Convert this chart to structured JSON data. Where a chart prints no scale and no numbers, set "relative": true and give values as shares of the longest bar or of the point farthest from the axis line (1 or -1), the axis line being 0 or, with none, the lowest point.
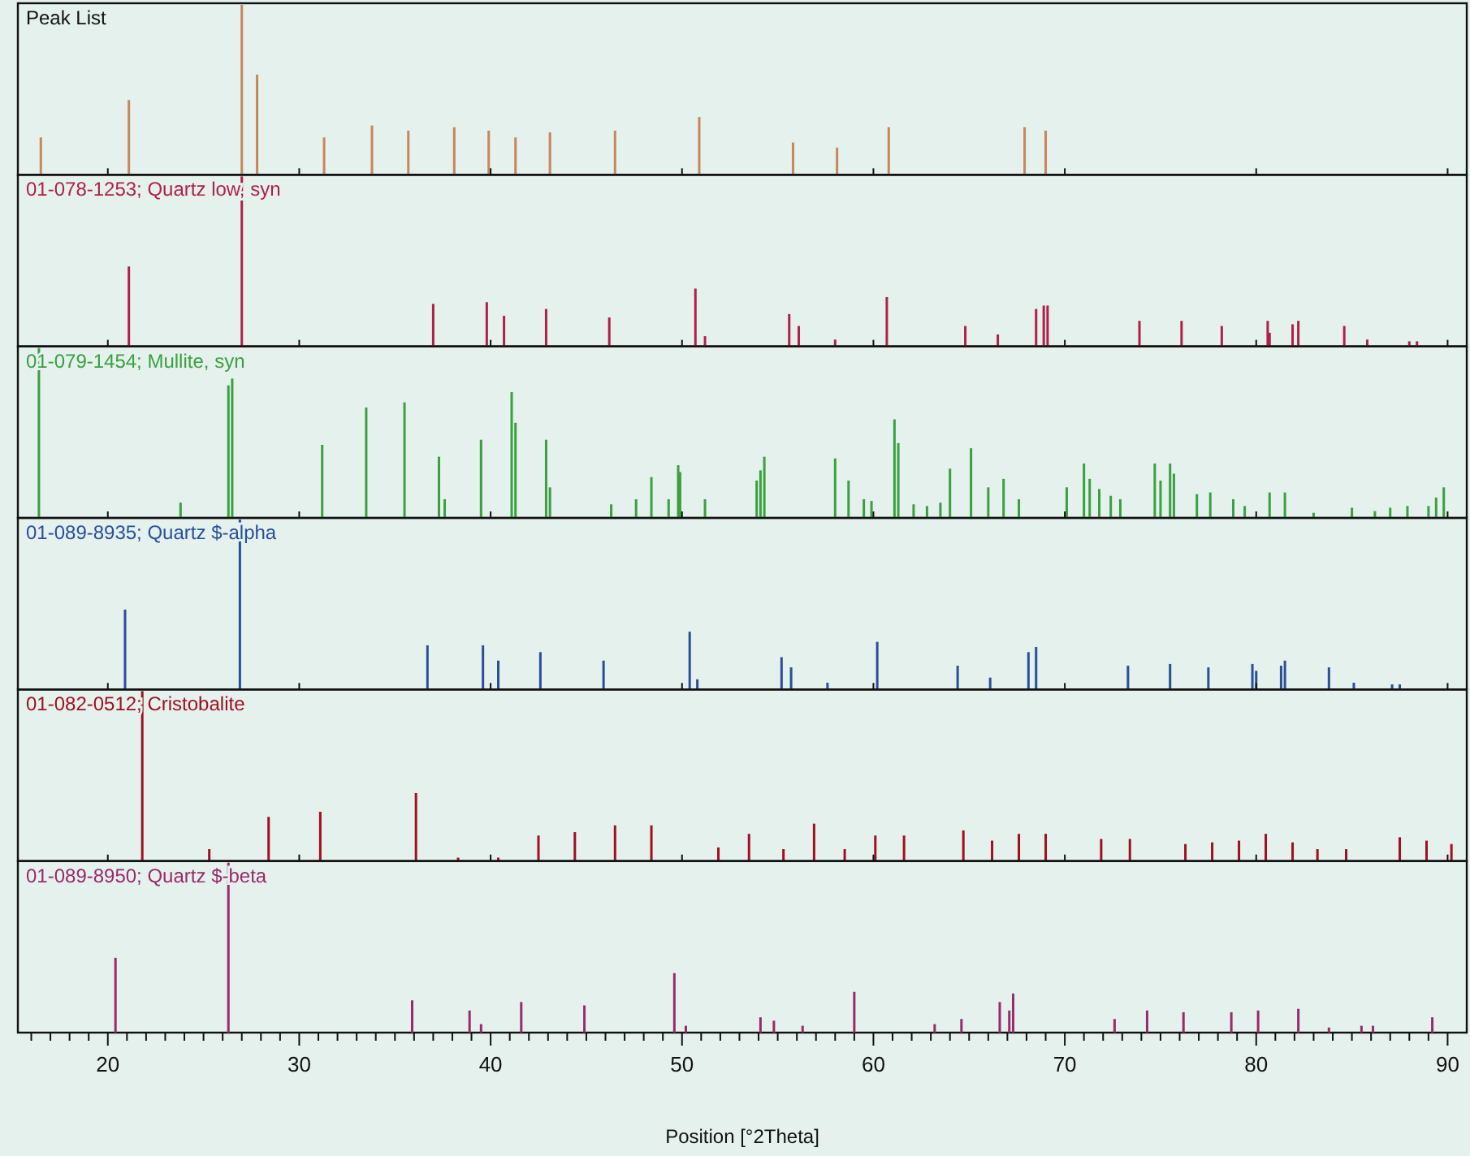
{
  "chart_data": [
    {
      "type": "bar",
      "title": "Peak List",
      "relative": true,
      "tick_labels": false,
      "xlim": [
        15.3,
        91
      ],
      "xticks": [
        20,
        30,
        40,
        50,
        60,
        70,
        80,
        90
      ],
      "color": "#c8865a",
      "x": [
        16.5,
        21.1,
        27.0,
        27.8,
        31.3,
        33.8,
        35.7,
        38.1,
        39.9,
        41.3,
        43.1,
        46.5,
        50.9,
        55.8,
        58.1,
        60.8,
        67.9,
        69.0
      ],
      "values": [
        0.22,
        0.44,
        1,
        0.59,
        0.22,
        0.29,
        0.26,
        0.28,
        0.26,
        0.22,
        0.25,
        0.26,
        0.34,
        0.19,
        0.16,
        0.28,
        0.28,
        0.26
      ]
    },
    {
      "type": "bar",
      "title": "01-078-1253; Quartz low, syn",
      "relative": true,
      "tick_labels": false,
      "xlim": [
        15.3,
        91
      ],
      "xticks": [
        20,
        30,
        40,
        50,
        60,
        70,
        80,
        90
      ],
      "color": "#b0204a",
      "x": [
        21.1,
        27.0,
        37.0,
        39.8,
        40.7,
        42.9,
        46.2,
        50.7,
        51.2,
        55.6,
        56.1,
        58.0,
        60.7,
        64.8,
        66.5,
        68.5,
        68.9,
        69.1,
        73.9,
        76.1,
        78.2,
        80.6,
        80.7,
        81.9,
        82.2,
        84.6,
        85.8,
        88.0,
        88.4
      ],
      "values": [
        0.47,
        1,
        0.25,
        0.26,
        0.18,
        0.22,
        0.17,
        0.34,
        0.06,
        0.19,
        0.12,
        0.04,
        0.29,
        0.12,
        0.07,
        0.22,
        0.24,
        0.24,
        0.15,
        0.15,
        0.12,
        0.15,
        0.08,
        0.13,
        0.15,
        0.12,
        0.04,
        0.03,
        0.03
      ]
    },
    {
      "type": "bar",
      "title": "01-079-1454; Mullite, syn",
      "relative": true,
      "tick_labels": false,
      "xlim": [
        15.3,
        91
      ],
      "xticks": [
        20,
        30,
        40,
        50,
        60,
        70,
        80,
        90
      ],
      "color": "#3aa040",
      "x": [
        16.4,
        23.8,
        26.3,
        26.5,
        31.2,
        33.5,
        35.5,
        37.3,
        37.6,
        39.5,
        41.1,
        41.3,
        42.9,
        43.1,
        46.3,
        47.6,
        48.4,
        49.3,
        49.8,
        49.9,
        51.2,
        53.9,
        54.1,
        54.3,
        58.0,
        58.7,
        59.5,
        59.9,
        61.1,
        61.3,
        62.1,
        62.8,
        63.5,
        64.0,
        65.1,
        66.0,
        66.8,
        67.6,
        70.1,
        71.0,
        71.3,
        71.8,
        72.4,
        72.9,
        74.7,
        75.0,
        75.5,
        75.7,
        76.9,
        77.6,
        78.8,
        79.4,
        80.7,
        81.5,
        83.0,
        85.0,
        86.2,
        87.0,
        87.9,
        89.0,
        89.4,
        89.8
      ],
      "values": [
        1,
        0.09,
        0.78,
        0.82,
        0.43,
        0.65,
        0.68,
        0.36,
        0.11,
        0.46,
        0.74,
        0.56,
        0.46,
        0.18,
        0.08,
        0.11,
        0.24,
        0.11,
        0.31,
        0.27,
        0.11,
        0.22,
        0.28,
        0.36,
        0.35,
        0.22,
        0.11,
        0.1,
        0.58,
        0.44,
        0.08,
        0.07,
        0.09,
        0.29,
        0.41,
        0.18,
        0.23,
        0.11,
        0.18,
        0.32,
        0.23,
        0.17,
        0.13,
        0.11,
        0.32,
        0.22,
        0.32,
        0.26,
        0.14,
        0.15,
        0.11,
        0.07,
        0.15,
        0.15,
        0.03,
        0.06,
        0.04,
        0.06,
        0.07,
        0.07,
        0.12,
        0.18
      ]
    },
    {
      "type": "bar",
      "title": "01-089-8935; Quartz $-alpha",
      "relative": true,
      "tick_labels": false,
      "xlim": [
        15.3,
        91
      ],
      "xticks": [
        20,
        30,
        40,
        50,
        60,
        70,
        80,
        90
      ],
      "color": "#2a4f9a",
      "x": [
        20.9,
        26.9,
        36.7,
        39.6,
        40.4,
        42.6,
        45.9,
        50.4,
        50.8,
        55.2,
        55.7,
        57.6,
        60.2,
        64.4,
        66.1,
        68.1,
        68.5,
        73.3,
        75.5,
        77.5,
        79.8,
        80.0,
        81.3,
        81.5,
        83.8,
        85.1,
        87.1,
        87.5
      ],
      "values": [
        0.47,
        1,
        0.26,
        0.26,
        0.17,
        0.22,
        0.17,
        0.34,
        0.06,
        0.19,
        0.13,
        0.04,
        0.28,
        0.14,
        0.07,
        0.22,
        0.25,
        0.14,
        0.15,
        0.13,
        0.15,
        0.11,
        0.14,
        0.17,
        0.13,
        0.04,
        0.03,
        0.03
      ]
    },
    {
      "type": "bar",
      "title": "01-082-0512; Cristobalite",
      "relative": true,
      "tick_labels": false,
      "xlim": [
        15.3,
        91
      ],
      "xticks": [
        20,
        30,
        40,
        50,
        60,
        70,
        80,
        90
      ],
      "color": "#a01020",
      "x": [
        21.8,
        25.3,
        28.4,
        31.1,
        36.1,
        38.3,
        40.4,
        42.5,
        44.4,
        46.5,
        48.4,
        51.9,
        53.5,
        55.3,
        56.9,
        58.5,
        60.1,
        61.6,
        64.7,
        66.2,
        67.6,
        69.0,
        71.9,
        73.4,
        76.3,
        77.7,
        79.1,
        80.5,
        81.9,
        83.2,
        84.7,
        87.5,
        88.9,
        90.2
      ],
      "values": [
        1,
        0.07,
        0.26,
        0.29,
        0.4,
        0.02,
        0.02,
        0.15,
        0.17,
        0.21,
        0.21,
        0.08,
        0.16,
        0.07,
        0.22,
        0.07,
        0.15,
        0.15,
        0.18,
        0.12,
        0.16,
        0.16,
        0.13,
        0.13,
        0.1,
        0.11,
        0.12,
        0.16,
        0.11,
        0.07,
        0.07,
        0.14,
        0.12,
        0.1
      ]
    },
    {
      "type": "bar",
      "title": "01-089-8950; Quartz $-beta",
      "relative": true,
      "xlabel": "Position [°2Theta]",
      "xlim": [
        15.3,
        91
      ],
      "color": "#9a2a6a",
      "xticks": [
        {
          "value": 16,
          "label": null
        },
        {
          "value": 17,
          "label": null
        },
        {
          "value": 18,
          "label": null
        },
        {
          "value": 19,
          "label": null
        },
        20,
        {
          "value": 21,
          "label": null
        },
        {
          "value": 22,
          "label": null
        },
        {
          "value": 23,
          "label": null
        },
        {
          "value": 24,
          "label": null
        },
        {
          "value": 25,
          "label": null
        },
        {
          "value": 26,
          "label": null
        },
        {
          "value": 27,
          "label": null
        },
        {
          "value": 28,
          "label": null
        },
        {
          "value": 29,
          "label": null
        },
        30,
        {
          "value": 31,
          "label": null
        },
        {
          "value": 32,
          "label": null
        },
        {
          "value": 33,
          "label": null
        },
        {
          "value": 34,
          "label": null
        },
        {
          "value": 35,
          "label": null
        },
        {
          "value": 36,
          "label": null
        },
        {
          "value": 37,
          "label": null
        },
        {
          "value": 38,
          "label": null
        },
        {
          "value": 39,
          "label": null
        },
        40,
        {
          "value": 41,
          "label": null
        },
        {
          "value": 42,
          "label": null
        },
        {
          "value": 43,
          "label": null
        },
        {
          "value": 44,
          "label": null
        },
        {
          "value": 45,
          "label": null
        },
        {
          "value": 46,
          "label": null
        },
        {
          "value": 47,
          "label": null
        },
        {
          "value": 48,
          "label": null
        },
        {
          "value": 49,
          "label": null
        },
        50,
        {
          "value": 51,
          "label": null
        },
        {
          "value": 52,
          "label": null
        },
        {
          "value": 53,
          "label": null
        },
        {
          "value": 54,
          "label": null
        },
        {
          "value": 55,
          "label": null
        },
        {
          "value": 56,
          "label": null
        },
        {
          "value": 57,
          "label": null
        },
        {
          "value": 58,
          "label": null
        },
        {
          "value": 59,
          "label": null
        },
        60,
        {
          "value": 61,
          "label": null
        },
        {
          "value": 62,
          "label": null
        },
        {
          "value": 63,
          "label": null
        },
        {
          "value": 64,
          "label": null
        },
        {
          "value": 65,
          "label": null
        },
        {
          "value": 66,
          "label": null
        },
        {
          "value": 67,
          "label": null
        },
        {
          "value": 68,
          "label": null
        },
        {
          "value": 69,
          "label": null
        },
        70,
        {
          "value": 71,
          "label": null
        },
        {
          "value": 72,
          "label": null
        },
        {
          "value": 73,
          "label": null
        },
        {
          "value": 74,
          "label": null
        },
        {
          "value": 75,
          "label": null
        },
        {
          "value": 76,
          "label": null
        },
        {
          "value": 77,
          "label": null
        },
        {
          "value": 78,
          "label": null
        },
        {
          "value": 79,
          "label": null
        },
        80,
        {
          "value": 81,
          "label": null
        },
        {
          "value": 82,
          "label": null
        },
        {
          "value": 83,
          "label": null
        },
        {
          "value": 84,
          "label": null
        },
        {
          "value": 85,
          "label": null
        },
        {
          "value": 86,
          "label": null
        },
        {
          "value": 87,
          "label": null
        },
        {
          "value": 88,
          "label": null
        },
        {
          "value": 89,
          "label": null
        },
        90
      ],
      "x": [
        20.4,
        26.3,
        35.9,
        38.9,
        39.5,
        41.6,
        44.9,
        49.6,
        50.2,
        54.1,
        54.8,
        56.3,
        59.0,
        63.2,
        64.6,
        66.6,
        67.1,
        67.3,
        72.6,
        74.3,
        76.2,
        78.7,
        80.1,
        82.2,
        83.8,
        85.5,
        86.1,
        89.2
      ],
      "values": [
        0.44,
        1,
        0.19,
        0.13,
        0.05,
        0.18,
        0.16,
        0.35,
        0.04,
        0.09,
        0.07,
        0.04,
        0.24,
        0.05,
        0.08,
        0.18,
        0.13,
        0.23,
        0.08,
        0.13,
        0.12,
        0.12,
        0.13,
        0.14,
        0.03,
        0.04,
        0.04,
        0.09
      ]
    }
  ]
}
